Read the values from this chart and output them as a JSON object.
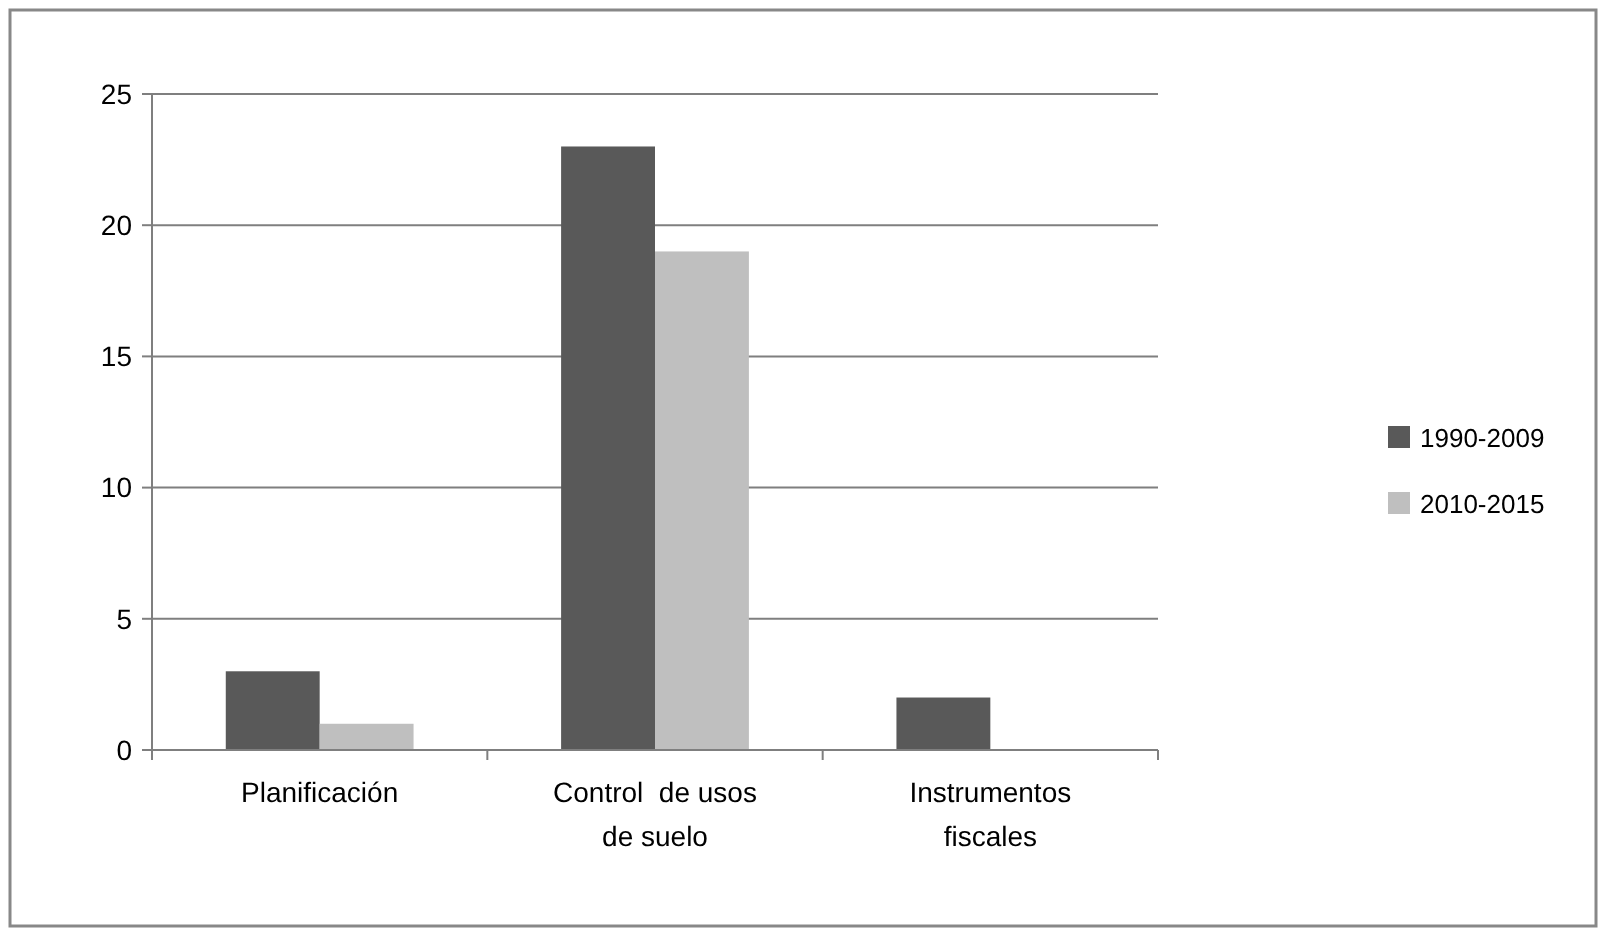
{
  "chart_data": {
    "type": "bar",
    "categories": [
      "Planificación",
      "Control  de usos de suelo",
      "Instrumentos fiscales"
    ],
    "series": [
      {
        "name": "1990-2009",
        "color": "#595959",
        "values": [
          3,
          23,
          2
        ]
      },
      {
        "name": "2010-2015",
        "color": "#bfbfbf",
        "values": [
          1,
          19,
          0
        ]
      }
    ],
    "ylim": [
      0,
      25
    ],
    "yticks": [
      0,
      5,
      10,
      15,
      20,
      25
    ],
    "grid": "y",
    "legend": "right"
  }
}
